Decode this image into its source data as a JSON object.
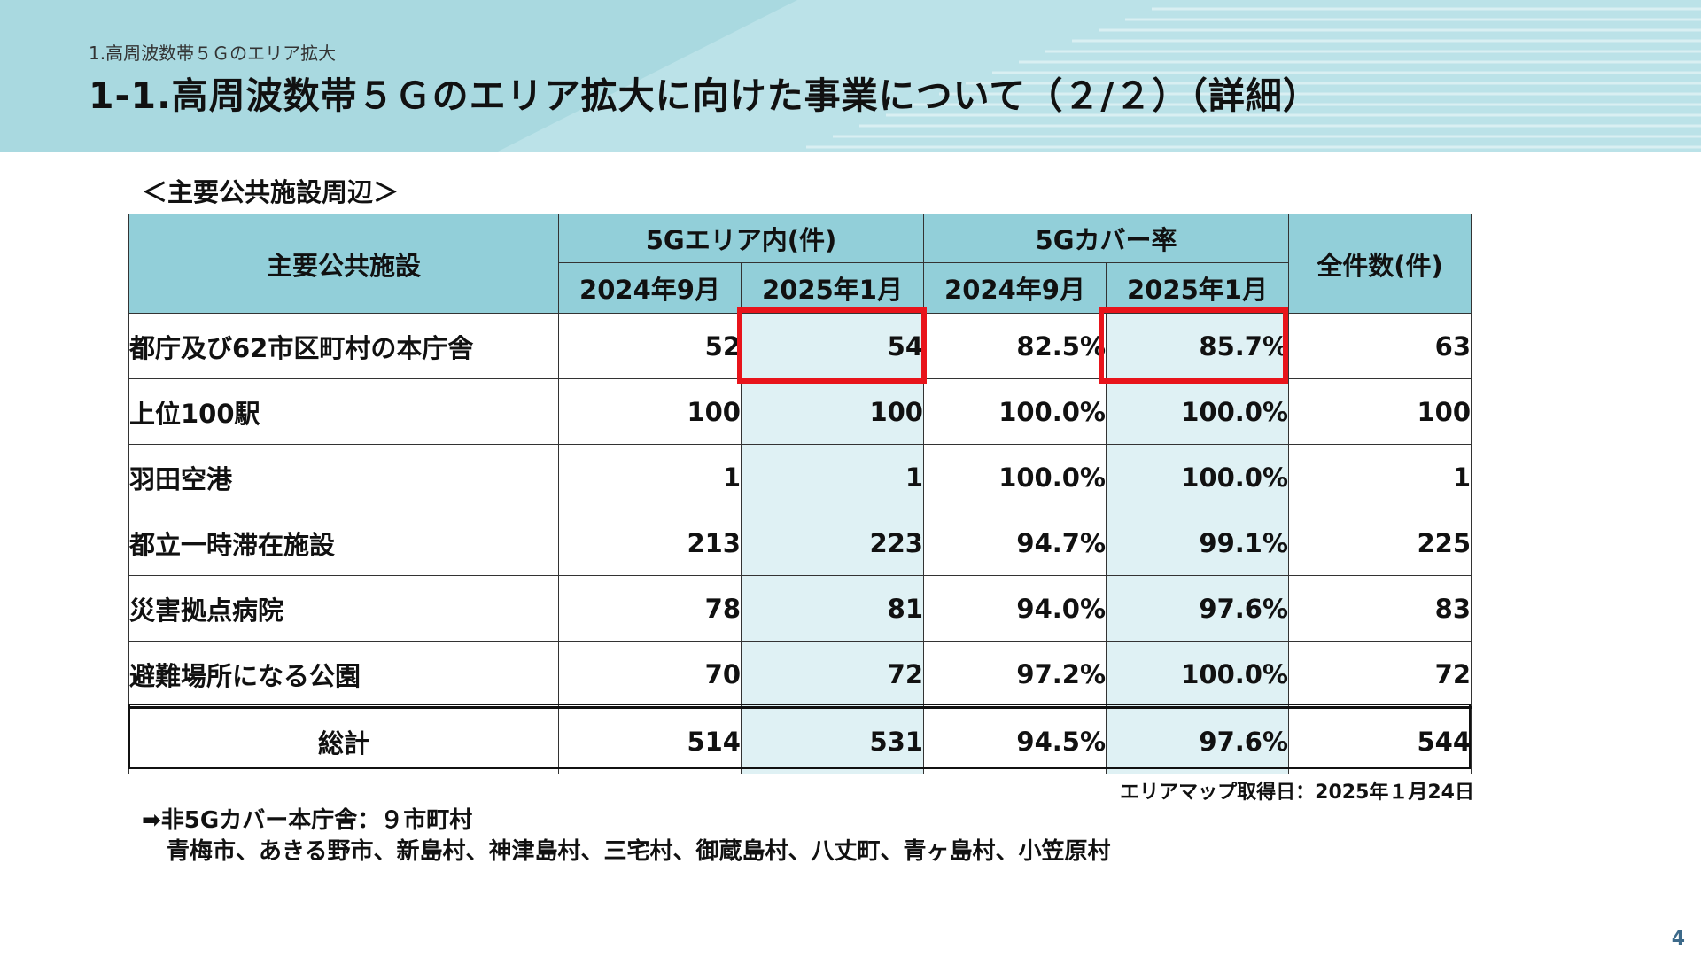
{
  "header": {
    "breadcrumb": "1.高周波数帯５Ｇのエリア拡大",
    "title": "1-1.高周波数帯５Ｇのエリア拡大に向けた事業について（２/２）（詳細）"
  },
  "section_title": "＜主要公共施設周辺＞",
  "table": {
    "headers": {
      "facility": "主要公共施設",
      "area_group": "5Gエリア内(件)",
      "cover_group": "5Gカバー率",
      "total_count": "全件数(件)",
      "sub_sep2024": "2024年9月",
      "sub_jan2025": "2025年1月"
    },
    "rows": [
      {
        "name": "都庁及び62市区町村の本庁舎",
        "area_2024": "52",
        "area_2025": "54",
        "cover_2024": "82.5%",
        "cover_2025": "85.7%",
        "total": "63"
      },
      {
        "name": "上位100駅",
        "area_2024": "100",
        "area_2025": "100",
        "cover_2024": "100.0%",
        "cover_2025": "100.0%",
        "total": "100"
      },
      {
        "name": "羽田空港",
        "area_2024": "1",
        "area_2025": "1",
        "cover_2024": "100.0%",
        "cover_2025": "100.0%",
        "total": "1"
      },
      {
        "name": "都立一時滞在施設",
        "area_2024": "213",
        "area_2025": "223",
        "cover_2024": "94.7%",
        "cover_2025": "99.1%",
        "total": "225"
      },
      {
        "name": "災害拠点病院",
        "area_2024": "78",
        "area_2025": "81",
        "cover_2024": "94.0%",
        "cover_2025": "97.6%",
        "total": "83"
      },
      {
        "name": "避難場所になる公園",
        "area_2024": "70",
        "area_2025": "72",
        "cover_2024": "97.2%",
        "cover_2025": "100.0%",
        "total": "72"
      }
    ],
    "total_row": {
      "name": "総計",
      "area_2024": "514",
      "area_2025": "531",
      "cover_2024": "94.5%",
      "cover_2025": "97.6%",
      "total": "544"
    }
  },
  "date_note": "エリアマップ取得日：2025年１月24日",
  "notes": {
    "line1": "➡非5Gカバー本庁舎：９市町村",
    "line2": "青梅市、あきる野市、新島村、神津島村、三宅村、御蔵島村、八丈町、青ヶ島村、小笠原村"
  },
  "page_number": "4",
  "colors": {
    "header_band": "#a9d9e0",
    "table_header": "#92cfd9",
    "highlight_column": "#dff1f4",
    "emphasis_box": "#e8141b"
  }
}
